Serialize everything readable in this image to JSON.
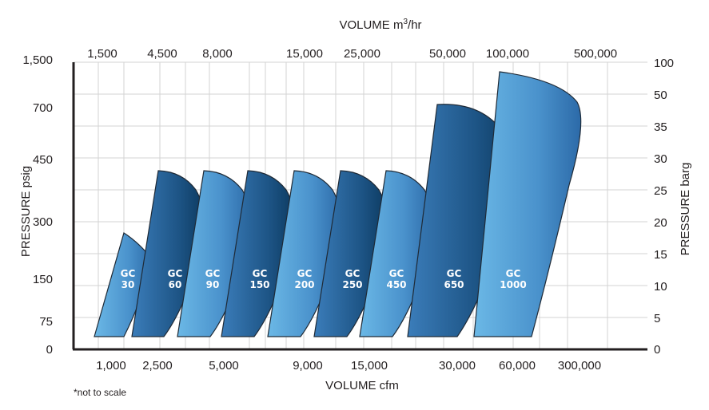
{
  "chart_data": {
    "type": "area",
    "note": "*not to scale",
    "x_bottom": {
      "label": "VOLUME cfm",
      "ticks": [
        "1,000",
        "2,500",
        "5,000",
        "9,000",
        "15,000",
        "30,000",
        "60,000",
        "300,000"
      ]
    },
    "x_top": {
      "label": "VOLUME m³/hr",
      "ticks": [
        "1,500",
        "4,500",
        "8,000",
        "15,000",
        "25,000",
        "50,000",
        "100,000",
        "500,000"
      ]
    },
    "y_left": {
      "label": "PRESSURE psig",
      "ticks": [
        "0",
        "75",
        "150",
        "300",
        "450",
        "700",
        "1,500"
      ]
    },
    "y_right": {
      "label": "PRESSURE barg",
      "ticks": [
        "0",
        "5",
        "10",
        "15",
        "20",
        "25",
        "30",
        "35",
        "50",
        "100"
      ]
    },
    "grid": true,
    "series": [
      {
        "name": "GC 30",
        "line1": "GC",
        "line2": "30",
        "max_pressure_psig": 250,
        "color": "#3d84bf"
      },
      {
        "name": "GC 60",
        "line1": "GC",
        "line2": "60",
        "max_pressure_psig": 415,
        "color": "#215f95"
      },
      {
        "name": "GC 90",
        "line1": "GC",
        "line2": "90",
        "max_pressure_psig": 415,
        "color": "#3d84bf"
      },
      {
        "name": "GC 150",
        "line1": "GC",
        "line2": "150",
        "max_pressure_psig": 415,
        "color": "#215f95"
      },
      {
        "name": "GC 200",
        "line1": "GC",
        "line2": "200",
        "max_pressure_psig": 415,
        "color": "#3d84bf"
      },
      {
        "name": "GC 250",
        "line1": "GC",
        "line2": "250",
        "max_pressure_psig": 415,
        "color": "#215f95"
      },
      {
        "name": "GC 450",
        "line1": "GC",
        "line2": "450",
        "max_pressure_psig": 415,
        "color": "#3d84bf"
      },
      {
        "name": "GC 650",
        "line1": "GC",
        "line2": "650",
        "max_pressure_psig": 700,
        "color": "#215f95"
      },
      {
        "name": "GC 1000",
        "line1": "GC",
        "line2": "1000",
        "max_pressure_psig": 1500,
        "color": "#3d84bf"
      }
    ]
  }
}
